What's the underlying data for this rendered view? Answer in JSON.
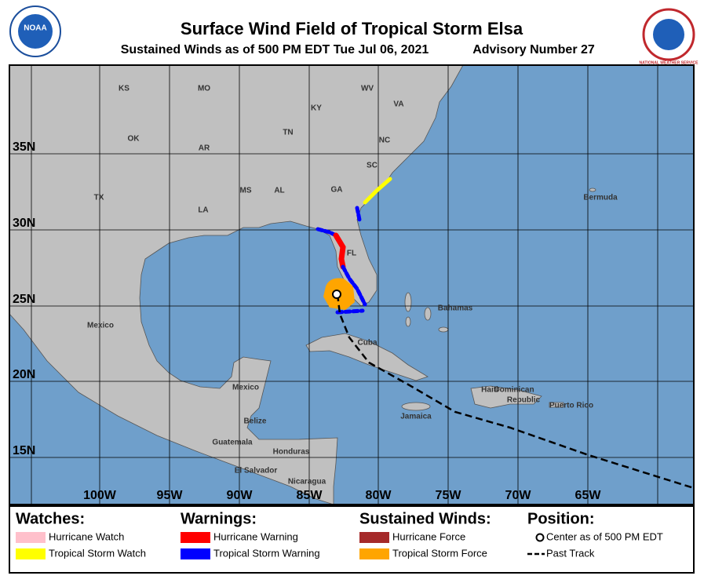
{
  "header": {
    "title": "Surface Wind Field of Tropical Storm Elsa",
    "subtitle": "Sustained Winds as of 500 PM EDT Tue Jul 06, 2021",
    "advisory": "Advisory Number 27",
    "left_logo": "NOAA",
    "right_logo": "NATIONAL WEATHER SERVICE"
  },
  "map": {
    "latitude_labels": [
      "35N",
      "30N",
      "25N",
      "20N",
      "15N"
    ],
    "longitude_labels": [
      "100W",
      "95W",
      "90W",
      "85W",
      "80W",
      "75W",
      "70W",
      "65W"
    ],
    "place_labels": [
      "KS",
      "MO",
      "KY",
      "WV",
      "VA",
      "OK",
      "AR",
      "TN",
      "NC",
      "TX",
      "MS",
      "AL",
      "GA",
      "SC",
      "LA",
      "FL",
      "Bermuda",
      "Bahamas",
      "Mexico",
      "Cuba",
      "Mexico",
      "Haiti",
      "Dominican",
      "Republic",
      "Puerto Rico",
      "Jamaica",
      "Belize",
      "Guatemala",
      "Honduras",
      "El Salvador",
      "Nicaragua"
    ]
  },
  "legend": {
    "watches": {
      "title": "Watches:",
      "items": [
        "Hurricane Watch",
        "Tropical Storm Watch"
      ]
    },
    "warnings": {
      "title": "Warnings:",
      "items": [
        "Hurricane Warning",
        "Tropical Storm Warning"
      ]
    },
    "winds": {
      "title": "Sustained Winds:",
      "items": [
        "Hurricane Force",
        "Tropical Storm Force"
      ]
    },
    "position": {
      "title": "Position:",
      "items": [
        "Center as of 500 PM EDT",
        "Past Track"
      ]
    }
  }
}
